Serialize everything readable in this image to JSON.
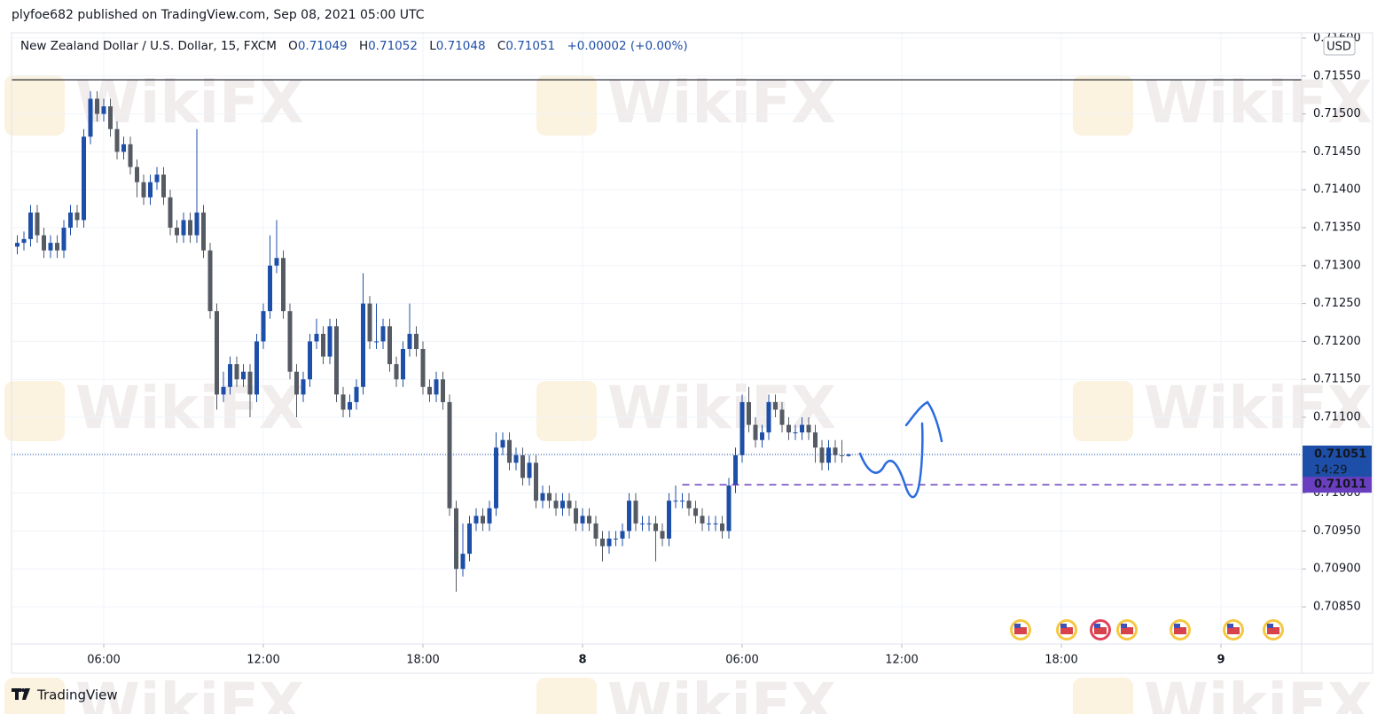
{
  "header": {
    "published": "plyfoe682 published on TradingView.com, Sep 08, 2021 05:00 UTC",
    "brand": "TradingView",
    "watermark": "WikiFX"
  },
  "chart_data": {
    "type": "candlestick",
    "title": "New Zealand Dollar / U.S. Dollar, 15, FXCM",
    "legend": {
      "o_label": "O",
      "o": "0.71049",
      "h_label": "H",
      "h": "0.71052",
      "l_label": "L",
      "l": "0.71048",
      "c_label": "C",
      "c": "0.71051",
      "change": "+0.00002",
      "change_pct": "(+0.00%)"
    },
    "currency": "USD",
    "up_color": "#1e4fa8",
    "down_color": "#555a63",
    "grid": true,
    "xlim": [
      2.533,
      51.033
    ],
    "ylim": [
      0.70801,
      0.71607
    ],
    "xticks": [
      {
        "value": 6,
        "label": "06:00"
      },
      {
        "value": 12,
        "label": "12:00"
      },
      {
        "value": 18,
        "label": "18:00"
      },
      {
        "value": 24,
        "label": "8"
      },
      {
        "value": 30,
        "label": "06:00"
      },
      {
        "value": 36,
        "label": "12:00"
      },
      {
        "value": 42,
        "label": "18:00"
      },
      {
        "value": 48,
        "label": "9"
      }
    ],
    "yticks": [
      {
        "value": 0.7085,
        "label": "0.70850"
      },
      {
        "value": 0.709,
        "label": "0.70900"
      },
      {
        "value": 0.7095,
        "label": "0.70950"
      },
      {
        "value": 0.71,
        "label": "0.71000"
      },
      {
        "value": 0.7105,
        "label": "0.71050"
      },
      {
        "value": 0.711,
        "label": "0.71100"
      },
      {
        "value": 0.7115,
        "label": "0.71150"
      },
      {
        "value": 0.712,
        "label": "0.71200"
      },
      {
        "value": 0.7125,
        "label": "0.71250"
      },
      {
        "value": 0.713,
        "label": "0.71300"
      },
      {
        "value": 0.7135,
        "label": "0.71350"
      },
      {
        "value": 0.714,
        "label": "0.71400"
      },
      {
        "value": 0.7145,
        "label": "0.71450"
      },
      {
        "value": 0.715,
        "label": "0.71500"
      },
      {
        "value": 0.7155,
        "label": "0.71550"
      },
      {
        "value": 0.716,
        "label": "0.71600"
      }
    ],
    "hline": 0.71545,
    "last_price": 0.71051,
    "last_price_color": "#1e4fa8",
    "countdown": "14:29",
    "alert_level": 0.71011,
    "alert_start": 27.75,
    "alert_color": "#6a3fbf",
    "x": [
      2.75,
      3,
      3.25,
      3.5,
      3.75,
      4,
      4.25,
      4.5,
      4.75,
      5,
      5.25,
      5.5,
      5.75,
      6,
      6.25,
      6.5,
      6.75,
      7,
      7.25,
      7.5,
      7.75,
      8,
      8.25,
      8.5,
      8.75,
      9,
      9.25,
      9.5,
      9.75,
      10,
      10.25,
      10.5,
      10.75,
      11,
      11.25,
      11.5,
      11.75,
      12,
      12.25,
      12.5,
      12.75,
      13,
      13.25,
      13.5,
      13.75,
      14,
      14.25,
      14.5,
      14.75,
      15,
      15.25,
      15.5,
      15.75,
      16,
      16.25,
      16.5,
      16.75,
      17,
      17.25,
      17.5,
      17.75,
      18,
      18.25,
      18.5,
      18.75,
      19,
      19.25,
      19.5,
      19.75,
      20,
      20.25,
      20.5,
      20.75,
      21,
      21.25,
      21.5,
      21.75,
      22,
      22.25,
      22.5,
      22.75,
      23,
      23.25,
      23.5,
      23.75,
      24,
      24.25,
      24.5,
      24.75,
      25,
      25.25,
      25.5,
      25.75,
      26,
      26.25,
      26.5,
      26.75,
      27,
      27.25,
      27.5,
      27.75,
      28,
      28.25,
      28.5,
      28.75,
      29,
      29.25,
      29.5,
      29.75,
      30,
      30.25,
      30.5,
      30.75,
      31,
      31.25,
      31.5,
      31.75,
      32,
      32.25,
      32.5,
      32.75,
      33,
      33.25,
      33.5,
      33.75,
      34
    ],
    "ohlc": [
      [
        0.71325,
        0.7134,
        0.71315,
        0.7133
      ],
      [
        0.7133,
        0.71345,
        0.7132,
        0.71335
      ],
      [
        0.71335,
        0.7138,
        0.71325,
        0.7137
      ],
      [
        0.7137,
        0.7138,
        0.7133,
        0.7134
      ],
      [
        0.7134,
        0.7135,
        0.7131,
        0.7132
      ],
      [
        0.7132,
        0.7134,
        0.7131,
        0.7133
      ],
      [
        0.7133,
        0.7134,
        0.7131,
        0.7132
      ],
      [
        0.7132,
        0.7136,
        0.7131,
        0.7135
      ],
      [
        0.7135,
        0.7138,
        0.7134,
        0.7137
      ],
      [
        0.7137,
        0.7138,
        0.7135,
        0.7136
      ],
      [
        0.7136,
        0.7148,
        0.7135,
        0.7147
      ],
      [
        0.7147,
        0.7153,
        0.7146,
        0.7152
      ],
      [
        0.7152,
        0.7153,
        0.7149,
        0.715
      ],
      [
        0.715,
        0.7152,
        0.7149,
        0.7151
      ],
      [
        0.7151,
        0.7152,
        0.7147,
        0.7148
      ],
      [
        0.7148,
        0.7149,
        0.7144,
        0.7145
      ],
      [
        0.7145,
        0.7147,
        0.7144,
        0.7146
      ],
      [
        0.7146,
        0.7147,
        0.7142,
        0.7143
      ],
      [
        0.7143,
        0.7144,
        0.7139,
        0.7141
      ],
      [
        0.7141,
        0.7142,
        0.7138,
        0.7139
      ],
      [
        0.7139,
        0.7142,
        0.7138,
        0.7141
      ],
      [
        0.7141,
        0.7143,
        0.714,
        0.7142
      ],
      [
        0.7142,
        0.7143,
        0.7138,
        0.7139
      ],
      [
        0.7139,
        0.714,
        0.7134,
        0.7135
      ],
      [
        0.7135,
        0.7136,
        0.7133,
        0.7134
      ],
      [
        0.7134,
        0.7137,
        0.7133,
        0.7136
      ],
      [
        0.7136,
        0.7137,
        0.7133,
        0.7134
      ],
      [
        0.7134,
        0.7148,
        0.7133,
        0.7137
      ],
      [
        0.7137,
        0.7138,
        0.7131,
        0.7132
      ],
      [
        0.7132,
        0.7133,
        0.7123,
        0.7124
      ],
      [
        0.7124,
        0.7125,
        0.7111,
        0.7113
      ],
      [
        0.7113,
        0.7116,
        0.7112,
        0.7114
      ],
      [
        0.7114,
        0.7118,
        0.7113,
        0.7117
      ],
      [
        0.7117,
        0.7118,
        0.7114,
        0.7115
      ],
      [
        0.7115,
        0.7117,
        0.7114,
        0.7116
      ],
      [
        0.7116,
        0.7117,
        0.711,
        0.7113
      ],
      [
        0.7113,
        0.7121,
        0.7112,
        0.712
      ],
      [
        0.712,
        0.7125,
        0.7119,
        0.7124
      ],
      [
        0.7124,
        0.7134,
        0.7123,
        0.713
      ],
      [
        0.713,
        0.7136,
        0.7129,
        0.7131
      ],
      [
        0.7131,
        0.7132,
        0.7123,
        0.7124
      ],
      [
        0.7124,
        0.7125,
        0.7115,
        0.7116
      ],
      [
        0.7116,
        0.7117,
        0.711,
        0.7113
      ],
      [
        0.7113,
        0.7116,
        0.7112,
        0.7115
      ],
      [
        0.7115,
        0.7121,
        0.7114,
        0.712
      ],
      [
        0.712,
        0.7123,
        0.7119,
        0.7121
      ],
      [
        0.7121,
        0.7122,
        0.7117,
        0.7118
      ],
      [
        0.7118,
        0.7123,
        0.7117,
        0.7122
      ],
      [
        0.7122,
        0.7123,
        0.7112,
        0.7113
      ],
      [
        0.7113,
        0.7114,
        0.711,
        0.7111
      ],
      [
        0.7111,
        0.7113,
        0.711,
        0.7112
      ],
      [
        0.7112,
        0.7115,
        0.7111,
        0.7114
      ],
      [
        0.7114,
        0.7129,
        0.7113,
        0.7125
      ],
      [
        0.7125,
        0.7126,
        0.7119,
        0.712
      ],
      [
        0.712,
        0.7125,
        0.7119,
        0.712
      ],
      [
        0.712,
        0.7123,
        0.7119,
        0.7122
      ],
      [
        0.7122,
        0.7123,
        0.7116,
        0.7117
      ],
      [
        0.7117,
        0.7118,
        0.7114,
        0.7115
      ],
      [
        0.7115,
        0.712,
        0.7114,
        0.7119
      ],
      [
        0.7119,
        0.7125,
        0.7118,
        0.7121
      ],
      [
        0.7121,
        0.7122,
        0.7118,
        0.7119
      ],
      [
        0.7119,
        0.712,
        0.7113,
        0.7114
      ],
      [
        0.7114,
        0.7115,
        0.7112,
        0.7113
      ],
      [
        0.7113,
        0.7116,
        0.7112,
        0.7115
      ],
      [
        0.7115,
        0.7116,
        0.7111,
        0.7112
      ],
      [
        0.7112,
        0.7113,
        0.7097,
        0.7098
      ],
      [
        0.7098,
        0.7099,
        0.7087,
        0.709
      ],
      [
        0.709,
        0.7096,
        0.7089,
        0.7092
      ],
      [
        0.7092,
        0.7097,
        0.7091,
        0.7096
      ],
      [
        0.7096,
        0.7098,
        0.7095,
        0.7097
      ],
      [
        0.7097,
        0.7098,
        0.7095,
        0.7096
      ],
      [
        0.7096,
        0.7099,
        0.7095,
        0.7098
      ],
      [
        0.7098,
        0.7108,
        0.7097,
        0.7106
      ],
      [
        0.7106,
        0.7108,
        0.7105,
        0.7107
      ],
      [
        0.7107,
        0.7108,
        0.7103,
        0.7104
      ],
      [
        0.7104,
        0.7106,
        0.7103,
        0.7105
      ],
      [
        0.7105,
        0.7106,
        0.7101,
        0.7102
      ],
      [
        0.7102,
        0.7105,
        0.7101,
        0.7104
      ],
      [
        0.7104,
        0.7105,
        0.7098,
        0.7099
      ],
      [
        0.7099,
        0.7101,
        0.7098,
        0.71
      ],
      [
        0.71,
        0.7101,
        0.7098,
        0.7099
      ],
      [
        0.7099,
        0.71,
        0.7097,
        0.7098
      ],
      [
        0.7098,
        0.71,
        0.7097,
        0.7099
      ],
      [
        0.7099,
        0.71,
        0.7097,
        0.7098
      ],
      [
        0.7098,
        0.7099,
        0.7095,
        0.7096
      ],
      [
        0.7096,
        0.7098,
        0.7095,
        0.7097
      ],
      [
        0.7097,
        0.7098,
        0.7095,
        0.7096
      ],
      [
        0.7096,
        0.7097,
        0.7093,
        0.7094
      ],
      [
        0.7094,
        0.7095,
        0.7091,
        0.7093
      ],
      [
        0.7093,
        0.7095,
        0.7092,
        0.7094
      ],
      [
        0.7094,
        0.7095,
        0.7093,
        0.7094
      ],
      [
        0.7094,
        0.7096,
        0.7093,
        0.7095
      ],
      [
        0.7095,
        0.71,
        0.7094,
        0.7099
      ],
      [
        0.7099,
        0.71,
        0.7095,
        0.7096
      ],
      [
        0.7096,
        0.7097,
        0.7095,
        0.7096
      ],
      [
        0.7096,
        0.7097,
        0.7095,
        0.7096
      ],
      [
        0.7096,
        0.7097,
        0.7091,
        0.7095
      ],
      [
        0.7095,
        0.7096,
        0.7093,
        0.7094
      ],
      [
        0.7094,
        0.71,
        0.7093,
        0.7099
      ],
      [
        0.7099,
        0.7101,
        0.7098,
        0.7099
      ],
      [
        0.7099,
        0.71,
        0.7098,
        0.7099
      ],
      [
        0.7099,
        0.71,
        0.7097,
        0.7098
      ],
      [
        0.7098,
        0.7099,
        0.7096,
        0.7097
      ],
      [
        0.7097,
        0.7098,
        0.7095,
        0.7096
      ],
      [
        0.7096,
        0.7097,
        0.7095,
        0.7096
      ],
      [
        0.7096,
        0.7097,
        0.7095,
        0.7096
      ],
      [
        0.7096,
        0.7097,
        0.7094,
        0.7095
      ],
      [
        0.7095,
        0.7102,
        0.7094,
        0.7101
      ],
      [
        0.7101,
        0.7106,
        0.71,
        0.7105
      ],
      [
        0.7105,
        0.7113,
        0.7104,
        0.7112
      ],
      [
        0.7112,
        0.7114,
        0.7108,
        0.7109
      ],
      [
        0.7109,
        0.711,
        0.7106,
        0.7107
      ],
      [
        0.7107,
        0.7109,
        0.7106,
        0.7108
      ],
      [
        0.7108,
        0.7113,
        0.7107,
        0.7112
      ],
      [
        0.7112,
        0.7113,
        0.711,
        0.7111
      ],
      [
        0.7111,
        0.7112,
        0.7108,
        0.7109
      ],
      [
        0.7109,
        0.711,
        0.7107,
        0.7108
      ],
      [
        0.7108,
        0.7109,
        0.7107,
        0.7108
      ],
      [
        0.7108,
        0.711,
        0.7107,
        0.7109
      ],
      [
        0.7109,
        0.711,
        0.7107,
        0.7108
      ],
      [
        0.7108,
        0.7109,
        0.7104,
        0.7106
      ],
      [
        0.7106,
        0.7107,
        0.7103,
        0.7104
      ],
      [
        0.7104,
        0.7107,
        0.7103,
        0.7106
      ],
      [
        0.7106,
        0.7107,
        0.7104,
        0.7105
      ],
      [
        0.7105,
        0.7107,
        0.7104,
        0.71049
      ],
      [
        0.71049,
        0.71052,
        0.71048,
        0.71051
      ]
    ]
  }
}
